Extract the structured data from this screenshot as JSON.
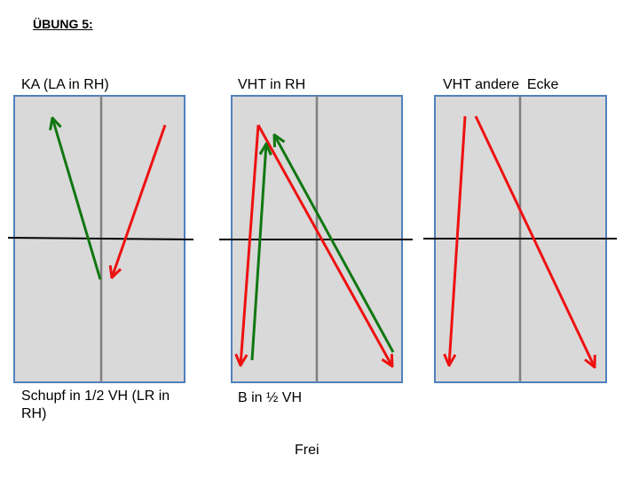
{
  "title": "ÜBUNG 5:",
  "panels": [
    {
      "label": "KA (LA in RH)",
      "caption": "Schupf in 1/2 VH (LR in RH)"
    },
    {
      "label": "VHT in RH",
      "caption": "B in ½ VH"
    },
    {
      "label": "VHT andere  Ecke"
    }
  ],
  "footer": "Frei"
}
